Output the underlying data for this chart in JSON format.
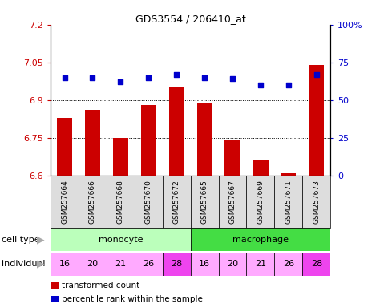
{
  "title": "GDS3554 / 206410_at",
  "samples": [
    "GSM257664",
    "GSM257666",
    "GSM257668",
    "GSM257670",
    "GSM257672",
    "GSM257665",
    "GSM257667",
    "GSM257669",
    "GSM257671",
    "GSM257673"
  ],
  "transformed_count": [
    6.83,
    6.86,
    6.75,
    6.88,
    6.95,
    6.89,
    6.74,
    6.66,
    6.61,
    7.04
  ],
  "percentile_rank": [
    65,
    65,
    62,
    65,
    67,
    65,
    64,
    60,
    60,
    67
  ],
  "ylim_left": [
    6.6,
    7.2
  ],
  "ylim_right": [
    0,
    100
  ],
  "yticks_left": [
    6.6,
    6.75,
    6.9,
    7.05,
    7.2
  ],
  "yticks_right": [
    0,
    25,
    50,
    75,
    100
  ],
  "ytick_labels_left": [
    "6.6",
    "6.75",
    "6.9",
    "7.05",
    "7.2"
  ],
  "ytick_labels_right": [
    "0",
    "25",
    "50",
    "75",
    "100%"
  ],
  "bar_color": "#cc0000",
  "scatter_color": "#0000cc",
  "cell_type_monocyte_color": "#bbffbb",
  "cell_type_macrophage_color": "#44dd44",
  "individuals": [
    16,
    20,
    21,
    26,
    28,
    16,
    20,
    21,
    26,
    28
  ],
  "individual_colors": [
    "#ffaaff",
    "#ffaaff",
    "#ffaaff",
    "#ffaaff",
    "#ee44ee",
    "#ffaaff",
    "#ffaaff",
    "#ffaaff",
    "#ffaaff",
    "#ee44ee"
  ],
  "legend_red_label": "transformed count",
  "legend_blue_label": "percentile rank within the sample",
  "bg_color": "#ffffff",
  "sample_label_bg": "#dddddd",
  "left_label_color": "#000000",
  "arrow_color": "#aaaaaa"
}
